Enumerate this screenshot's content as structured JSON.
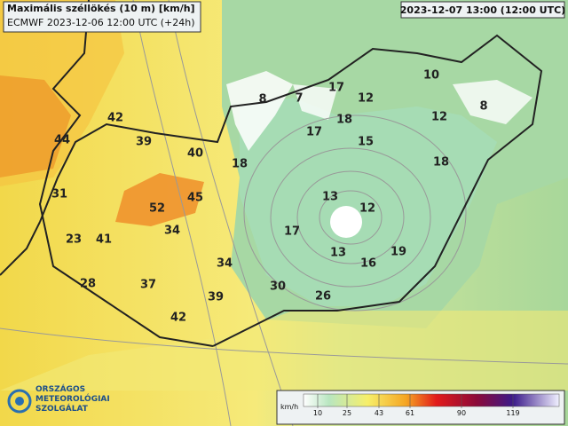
{
  "header": {
    "title": "Maximális széllökés (10 m) [km/h]",
    "subtitle": "ECMWF 2023-12-06 12:00 UTC (+24h)",
    "valid_time": "2023-12-07 13:00 (12:00 UTC)"
  },
  "stations": [
    8,
    7,
    17,
    12,
    10,
    8,
    42,
    44,
    39,
    18,
    12,
    17,
    15,
    40,
    18,
    18,
    31,
    45,
    13,
    12,
    52,
    34,
    17,
    23,
    41,
    13,
    19,
    16,
    34,
    28,
    37,
    30,
    39,
    26,
    42
  ],
  "legend": {
    "unit": "km/h",
    "ticks": [
      10,
      25,
      43,
      61,
      90,
      119
    ]
  },
  "logo": {
    "lines": [
      "ORSZÁGOS",
      "METEOROLÓGIAI",
      "SZOLGÁLAT"
    ]
  }
}
